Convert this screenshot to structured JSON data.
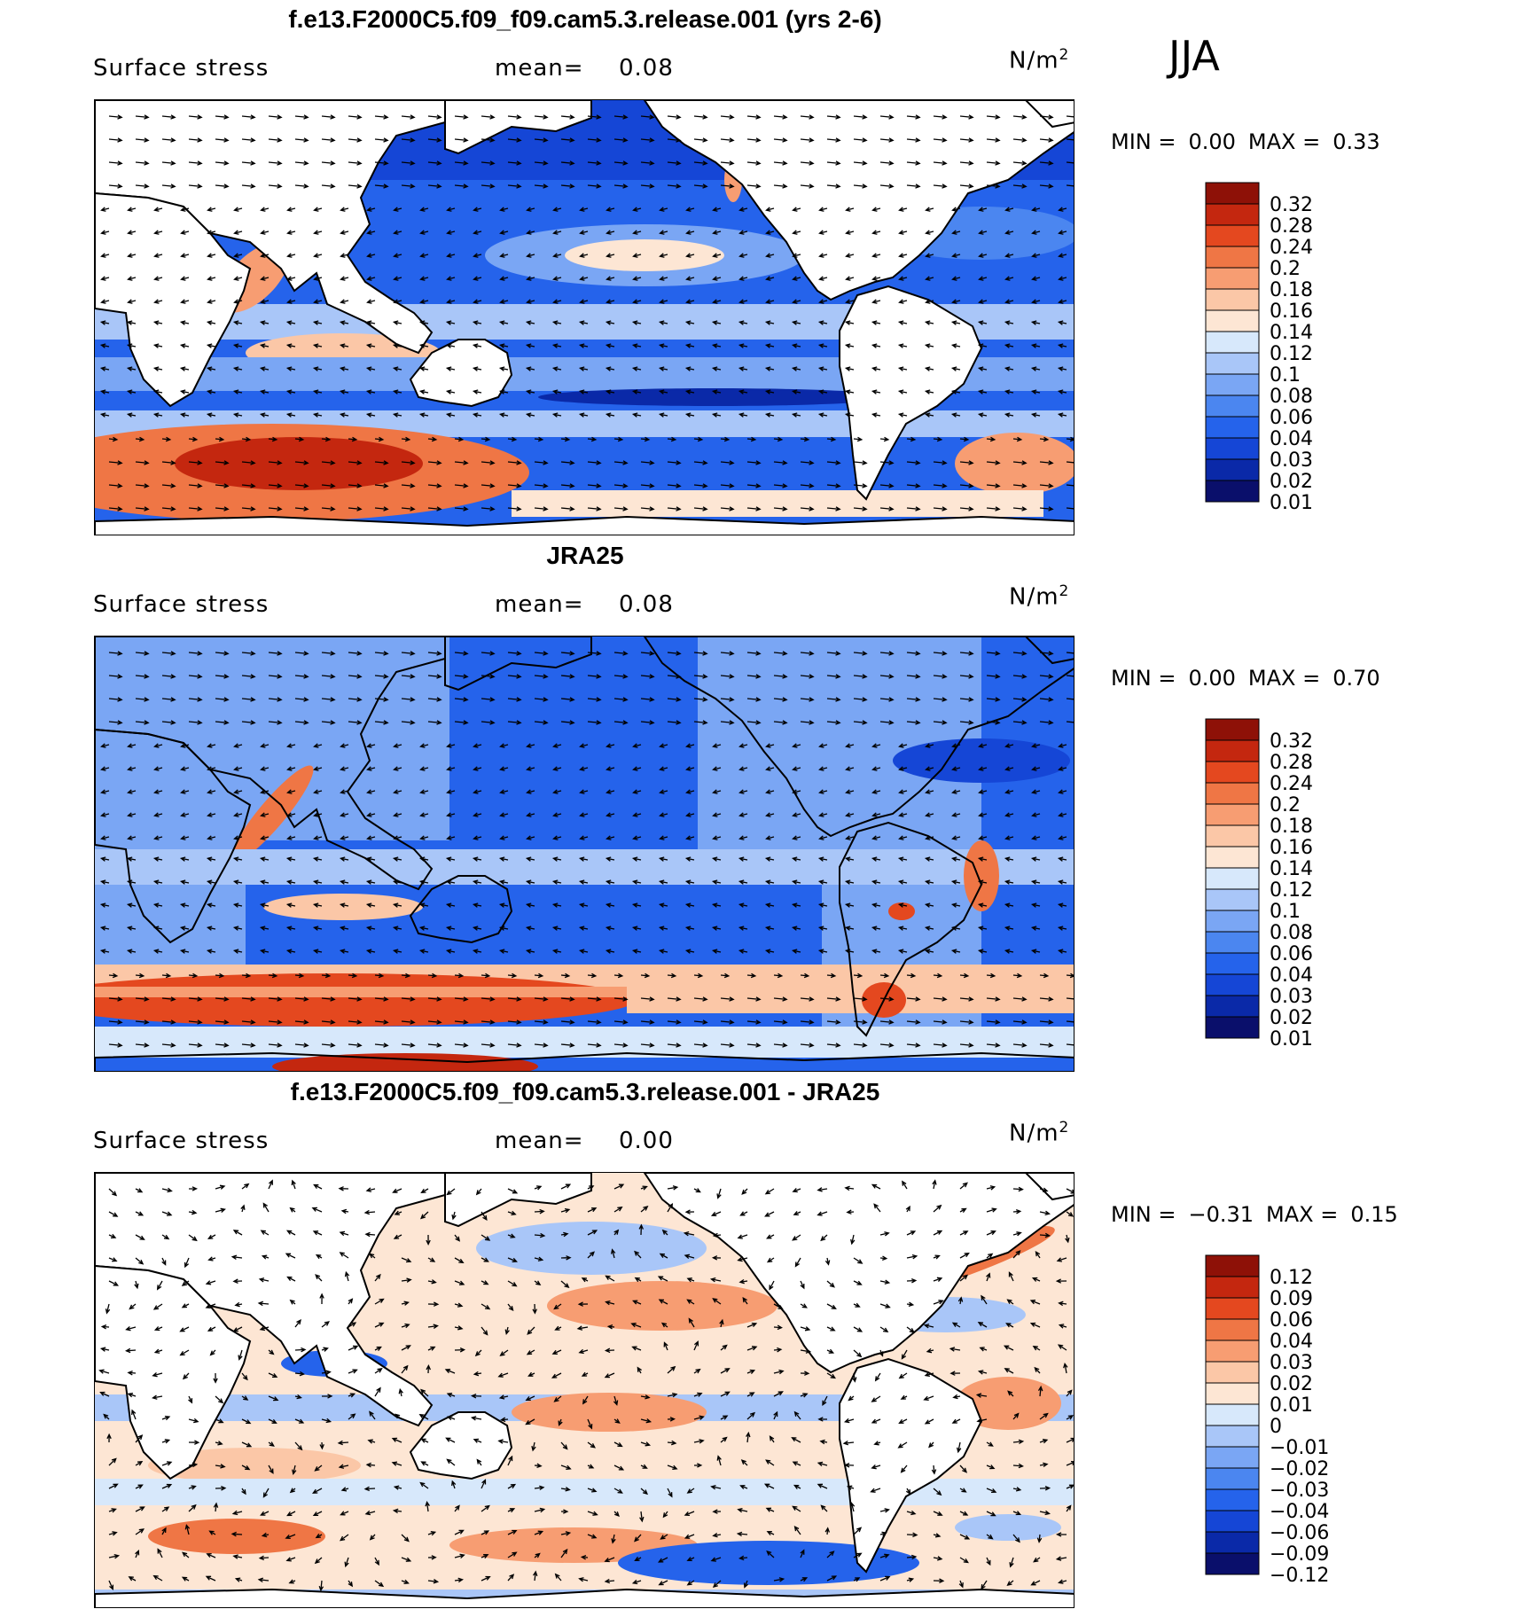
{
  "season": "JJA",
  "colors": {
    "seq": [
      "#0a0f6b",
      "#0a29a8",
      "#1546d6",
      "#2563eb",
      "#4b86f0",
      "#7aa6f4",
      "#a9c6f8",
      "#d7e8fb",
      "#fde6d4",
      "#fbc7a7",
      "#f79d72",
      "#ef7645",
      "#e4481f",
      "#c4270f",
      "#8e1107"
    ],
    "diff": [
      "#0a0f6b",
      "#0a29a8",
      "#1546d6",
      "#2563eb",
      "#4b86f0",
      "#7aa6f4",
      "#a9c6f8",
      "#d7e8fb",
      "#fde6d4",
      "#fbc7a7",
      "#f79d72",
      "#ef7645",
      "#e4481f",
      "#c4270f",
      "#8e1107"
    ]
  },
  "panels": [
    {
      "title": "f.e13.F2000C5.f09_f09.cam5.3.release.001 (yrs 2-6)",
      "variable": "Surface stress",
      "mean_label": "mean=",
      "mean_value": "0.08",
      "units": "N/m",
      "units_sup": "2",
      "min_label": "MIN =",
      "min_value": "0.00",
      "max_label": "MAX =",
      "max_value": "0.33",
      "colorbar_labels": [
        "0.32",
        "0.28",
        "0.24",
        "0.2",
        "0.18",
        "0.16",
        "0.14",
        "0.12",
        "0.1",
        "0.08",
        "0.06",
        "0.04",
        "0.03",
        "0.02",
        "0.01"
      ],
      "palette": "seq",
      "kind": "model"
    },
    {
      "title": "JRA25",
      "variable": "Surface stress",
      "mean_label": "mean=",
      "mean_value": "0.08",
      "units": "N/m",
      "units_sup": "2",
      "min_label": "MIN =",
      "min_value": "0.00",
      "max_label": "MAX =",
      "max_value": "0.70",
      "colorbar_labels": [
        "0.32",
        "0.28",
        "0.24",
        "0.2",
        "0.18",
        "0.16",
        "0.14",
        "0.12",
        "0.1",
        "0.08",
        "0.06",
        "0.04",
        "0.03",
        "0.02",
        "0.01"
      ],
      "palette": "seq",
      "kind": "obs"
    },
    {
      "title": "f.e13.F2000C5.f09_f09.cam5.3.release.001 - JRA25",
      "variable": "Surface stress",
      "mean_label": "mean=",
      "mean_value": "0.00",
      "units": "N/m",
      "units_sup": "2",
      "min_label": "MIN =",
      "min_value": "−0.31",
      "max_label": "MAX =",
      "max_value": "0.15",
      "colorbar_labels": [
        "0.12",
        "0.09",
        "0.06",
        "0.04",
        "0.03",
        "0.02",
        "0.01",
        "0",
        "−0.01",
        "−0.02",
        "−0.03",
        "−0.04",
        "−0.06",
        "−0.09",
        "−0.12"
      ],
      "palette": "diff",
      "kind": "diff"
    }
  ],
  "chart_data": [
    {
      "type": "heatmap",
      "title": "f.e13.F2000C5.f09_f09.cam5.3.release.001 (yrs 2-6)",
      "variable": "Surface stress",
      "units": "N/m2",
      "mean": 0.08,
      "min": 0.0,
      "max": 0.33,
      "contour_levels": [
        0.01,
        0.02,
        0.03,
        0.04,
        0.06,
        0.08,
        0.1,
        0.12,
        0.14,
        0.16,
        0.18,
        0.2,
        0.24,
        0.28,
        0.32
      ],
      "overlay": "wind stress vectors",
      "projection": "global cylindrical, centered on Pacific"
    },
    {
      "type": "heatmap",
      "title": "JRA25",
      "variable": "Surface stress",
      "units": "N/m2",
      "mean": 0.08,
      "min": 0.0,
      "max": 0.7,
      "contour_levels": [
        0.01,
        0.02,
        0.03,
        0.04,
        0.06,
        0.08,
        0.1,
        0.12,
        0.14,
        0.16,
        0.18,
        0.2,
        0.24,
        0.28,
        0.32
      ],
      "overlay": "wind stress vectors",
      "projection": "global cylindrical, centered on Pacific"
    },
    {
      "type": "heatmap",
      "title": "f.e13.F2000C5.f09_f09.cam5.3.release.001 - JRA25",
      "variable": "Surface stress",
      "units": "N/m2",
      "mean": 0.0,
      "min": -0.31,
      "max": 0.15,
      "contour_levels": [
        -0.12,
        -0.09,
        -0.06,
        -0.04,
        -0.03,
        -0.02,
        -0.01,
        0,
        0.01,
        0.02,
        0.03,
        0.04,
        0.06,
        0.09,
        0.12
      ],
      "overlay": "wind stress difference vectors",
      "projection": "global cylindrical, centered on Pacific"
    }
  ]
}
